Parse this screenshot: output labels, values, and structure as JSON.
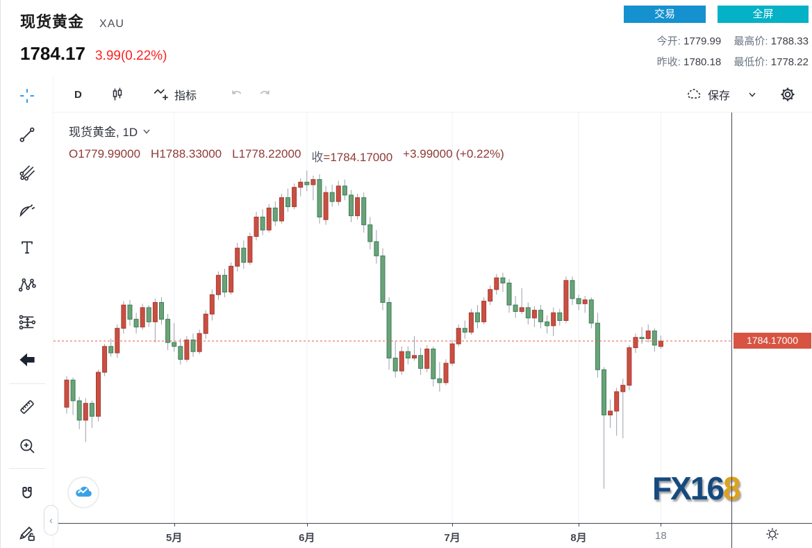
{
  "header": {
    "title": "现货黄金",
    "symbol_code": "XAU",
    "last_price": "1784.17",
    "change": "3.99(0.22%)",
    "buttons": {
      "trade": "交易",
      "fullscreen": "全屏"
    },
    "stats": {
      "open_label": "今开:",
      "open": "1779.99",
      "high_label": "最高价:",
      "high": "1788.33",
      "prev_close_label": "昨收:",
      "prev_close": "1780.18",
      "low_label": "最低价:",
      "low": "1778.22"
    }
  },
  "toolbar": {
    "interval": "D",
    "indicators_label": "指标",
    "save_label": "保存",
    "icons": [
      "candlestick-style-icon",
      "indicator-wave-icon",
      "undo-icon",
      "redo-icon",
      "cloud-save-icon",
      "chevron-down-icon",
      "gear-icon"
    ]
  },
  "sidebar": {
    "tools": [
      "crosshair",
      "trend-line",
      "pitchfork",
      "gann-fibonacci",
      "text",
      "xabcd-pattern",
      "forecast-measure",
      "arrow-marker",
      "ruler",
      "zoom-in",
      "magnet",
      "drawing-edit-lock"
    ]
  },
  "legend": {
    "symbol_line": "现货黄金, 1D",
    "open": "O1779.99000",
    "high": "H1788.33000",
    "low": "L1778.22000",
    "close_label": "收",
    "close_value": "=1784.17000",
    "change": "+3.99000 (+0.22%)"
  },
  "price_axis": {
    "last_price_label": "1784.17000"
  },
  "time_axis_corner": "sun-settings-icon",
  "watermark": {
    "logo_main": "FX16",
    "logo_accent": "8"
  },
  "collapse_tab": "‹",
  "colors": {
    "up_fill": "#c94f43",
    "up_border": "#a93a2f",
    "down_fill": "#69a377",
    "down_border": "#3e7d5b",
    "wick": "#9aa0aa",
    "grid": "#eef1f7",
    "price_line": "#e0584a",
    "price_label_bg": "#d75442",
    "trade_btn": "#1691d0",
    "fullscreen_btn": "#04b1c6",
    "change_red": "#fb1f1f",
    "ohlc_text": "#8e3a35",
    "logo_navy": "#15497f",
    "logo_gold": "#dfa21d"
  },
  "chart_data": {
    "type": "candlestick",
    "symbol": "现货黄金",
    "interval": "1D",
    "today": {
      "open": 1779.99,
      "high": 1788.33,
      "low": 1778.22,
      "close": 1784.17,
      "change": 3.99,
      "change_pct": "+0.22%"
    },
    "ylim": [
      1643.5,
      1959.2
    ],
    "price_line": 1784.17,
    "grid": "vertical-only",
    "x_ticks": [
      {
        "index": 17,
        "label": "5月"
      },
      {
        "index": 38,
        "label": "6月"
      },
      {
        "index": 61,
        "label": "7月"
      },
      {
        "index": 81,
        "label": "8月"
      },
      {
        "index": 94,
        "label": "18"
      }
    ],
    "candles": [
      [
        1733,
        1757,
        1728,
        1754
      ],
      [
        1754,
        1756,
        1727,
        1738
      ],
      [
        1738,
        1741,
        1716,
        1723
      ],
      [
        1723,
        1740,
        1706,
        1736
      ],
      [
        1736,
        1738,
        1717,
        1726
      ],
      [
        1726,
        1762,
        1722,
        1760
      ],
      [
        1760,
        1782,
        1757,
        1780
      ],
      [
        1780,
        1786,
        1772,
        1775
      ],
      [
        1775,
        1797,
        1771,
        1794
      ],
      [
        1794,
        1815,
        1790,
        1812
      ],
      [
        1812,
        1816,
        1796,
        1801
      ],
      [
        1801,
        1806,
        1790,
        1795
      ],
      [
        1795,
        1813,
        1793,
        1810
      ],
      [
        1810,
        1812,
        1795,
        1799
      ],
      [
        1799,
        1817,
        1783,
        1814
      ],
      [
        1814,
        1818,
        1797,
        1801
      ],
      [
        1801,
        1805,
        1777,
        1783
      ],
      [
        1783,
        1798,
        1776,
        1780
      ],
      [
        1780,
        1786,
        1766,
        1770
      ],
      [
        1770,
        1788,
        1768,
        1785
      ],
      [
        1785,
        1790,
        1772,
        1776
      ],
      [
        1776,
        1793,
        1774,
        1790
      ],
      [
        1790,
        1808,
        1786,
        1805
      ],
      [
        1805,
        1824,
        1800,
        1820
      ],
      [
        1820,
        1838,
        1816,
        1835
      ],
      [
        1835,
        1840,
        1818,
        1822
      ],
      [
        1822,
        1845,
        1820,
        1842
      ],
      [
        1842,
        1860,
        1838,
        1856
      ],
      [
        1856,
        1862,
        1840,
        1845
      ],
      [
        1845,
        1868,
        1843,
        1865
      ],
      [
        1865,
        1884,
        1862,
        1880
      ],
      [
        1880,
        1886,
        1866,
        1870
      ],
      [
        1870,
        1890,
        1868,
        1887
      ],
      [
        1887,
        1892,
        1873,
        1877
      ],
      [
        1877,
        1898,
        1875,
        1895
      ],
      [
        1895,
        1902,
        1884,
        1888
      ],
      [
        1888,
        1906,
        1886,
        1903
      ],
      [
        1903,
        1910,
        1896,
        1907
      ],
      [
        1907,
        1916,
        1900,
        1905
      ],
      [
        1905,
        1912,
        1893,
        1909
      ],
      [
        1909,
        1913,
        1875,
        1880
      ],
      [
        1878,
        1904,
        1874,
        1899
      ],
      [
        1899,
        1905,
        1888,
        1892
      ],
      [
        1892,
        1908,
        1889,
        1904
      ],
      [
        1904,
        1909,
        1893,
        1897
      ],
      [
        1897,
        1901,
        1876,
        1881
      ],
      [
        1881,
        1898,
        1878,
        1895
      ],
      [
        1895,
        1899,
        1868,
        1874
      ],
      [
        1874,
        1880,
        1855,
        1861
      ],
      [
        1861,
        1870,
        1844,
        1850
      ],
      [
        1850,
        1856,
        1808,
        1814
      ],
      [
        1814,
        1818,
        1762,
        1771
      ],
      [
        1771,
        1784,
        1756,
        1761
      ],
      [
        1761,
        1780,
        1758,
        1776
      ],
      [
        1776,
        1780,
        1766,
        1771
      ],
      [
        1771,
        1788,
        1769,
        1773
      ],
      [
        1773,
        1779,
        1758,
        1763
      ],
      [
        1763,
        1781,
        1760,
        1778
      ],
      [
        1778,
        1780,
        1749,
        1755
      ],
      [
        1755,
        1768,
        1745,
        1752
      ],
      [
        1752,
        1770,
        1750,
        1767
      ],
      [
        1767,
        1785,
        1765,
        1782
      ],
      [
        1782,
        1797,
        1780,
        1794
      ],
      [
        1794,
        1800,
        1786,
        1791
      ],
      [
        1791,
        1809,
        1789,
        1806
      ],
      [
        1806,
        1812,
        1794,
        1799
      ],
      [
        1799,
        1818,
        1797,
        1815
      ],
      [
        1815,
        1827,
        1812,
        1824
      ],
      [
        1824,
        1836,
        1820,
        1833
      ],
      [
        1833,
        1837,
        1822,
        1829
      ],
      [
        1829,
        1832,
        1806,
        1812
      ],
      [
        1812,
        1819,
        1802,
        1807
      ],
      [
        1807,
        1825,
        1805,
        1810
      ],
      [
        1810,
        1814,
        1797,
        1802
      ],
      [
        1802,
        1811,
        1795,
        1808
      ],
      [
        1808,
        1812,
        1794,
        1799
      ],
      [
        1799,
        1804,
        1790,
        1796
      ],
      [
        1796,
        1810,
        1788,
        1806
      ],
      [
        1806,
        1809,
        1796,
        1800
      ],
      [
        1800,
        1834,
        1798,
        1831
      ],
      [
        1831,
        1834,
        1812,
        1817
      ],
      [
        1817,
        1820,
        1808,
        1813
      ],
      [
        1813,
        1819,
        1806,
        1816
      ],
      [
        1816,
        1818,
        1794,
        1798
      ],
      [
        1798,
        1806,
        1756,
        1762
      ],
      [
        1762,
        1764,
        1670,
        1727
      ],
      [
        1727,
        1739,
        1717,
        1730
      ],
      [
        1730,
        1748,
        1711,
        1745
      ],
      [
        1745,
        1755,
        1709,
        1750
      ],
      [
        1750,
        1781,
        1746,
        1779
      ],
      [
        1779,
        1790,
        1775,
        1787
      ],
      [
        1787,
        1795,
        1782,
        1786
      ],
      [
        1786,
        1797,
        1783,
        1792
      ],
      [
        1792,
        1794,
        1776,
        1781
      ],
      [
        1779.99,
        1788.33,
        1778.22,
        1784.17
      ]
    ]
  }
}
